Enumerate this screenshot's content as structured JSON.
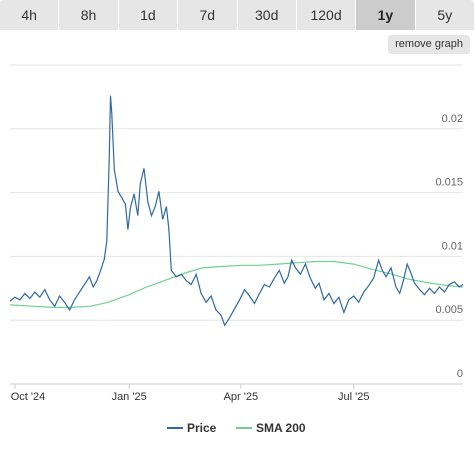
{
  "tabs": [
    {
      "label": "4h",
      "active": false
    },
    {
      "label": "8h",
      "active": false
    },
    {
      "label": "1d",
      "active": false
    },
    {
      "label": "7d",
      "active": false
    },
    {
      "label": "30d",
      "active": false
    },
    {
      "label": "120d",
      "active": false
    },
    {
      "label": "1y",
      "active": true
    },
    {
      "label": "5y",
      "active": false
    }
  ],
  "remove_graph_label": "remove graph",
  "colors": {
    "price": "#2f6aa0",
    "sma": "#6fd18f",
    "grid": "#e6e6e6"
  },
  "chart_data": {
    "type": "line",
    "ylim": [
      0,
      0.025
    ],
    "ytick_values": [
      0,
      0.005,
      0.01,
      0.015,
      0.02
    ],
    "ytick_labels": [
      "0",
      "0.005",
      "0.01",
      "0.015",
      "0.02"
    ],
    "xlim": [
      "2024-09-27",
      "2025-09-27"
    ],
    "xticks": [
      {
        "date": "2024-10-01",
        "label": "Oct '24"
      },
      {
        "date": "2025-01-01",
        "label": "Jan '25"
      },
      {
        "date": "2025-04-01",
        "label": "Apr '25"
      },
      {
        "date": "2025-07-01",
        "label": "Jul '25"
      }
    ],
    "series": [
      {
        "name": "Price",
        "points": [
          [
            "2024-09-27",
            0.0065
          ],
          [
            "2024-10-01",
            0.0068
          ],
          [
            "2024-10-05",
            0.0066
          ],
          [
            "2024-10-09",
            0.0071
          ],
          [
            "2024-10-13",
            0.0067
          ],
          [
            "2024-10-17",
            0.0072
          ],
          [
            "2024-10-21",
            0.0068
          ],
          [
            "2024-10-25",
            0.0074
          ],
          [
            "2024-10-29",
            0.0066
          ],
          [
            "2024-11-02",
            0.0061
          ],
          [
            "2024-11-06",
            0.0069
          ],
          [
            "2024-11-10",
            0.0064
          ],
          [
            "2024-11-14",
            0.0058
          ],
          [
            "2024-11-18",
            0.0066
          ],
          [
            "2024-11-22",
            0.0072
          ],
          [
            "2024-11-26",
            0.0078
          ],
          [
            "2024-11-30",
            0.0084
          ],
          [
            "2024-12-03",
            0.0076
          ],
          [
            "2024-12-06",
            0.0081
          ],
          [
            "2024-12-09",
            0.0089
          ],
          [
            "2024-12-12",
            0.0098
          ],
          [
            "2024-12-14",
            0.0112
          ],
          [
            "2024-12-16",
            0.0179
          ],
          [
            "2024-12-17",
            0.0226
          ],
          [
            "2024-12-18",
            0.0212
          ],
          [
            "2024-12-20",
            0.0168
          ],
          [
            "2024-12-23",
            0.0151
          ],
          [
            "2024-12-26",
            0.0146
          ],
          [
            "2024-12-29",
            0.0141
          ],
          [
            "2024-12-31",
            0.0121
          ],
          [
            "2025-01-02",
            0.0138
          ],
          [
            "2025-01-05",
            0.0149
          ],
          [
            "2025-01-08",
            0.0132
          ],
          [
            "2025-01-10",
            0.0157
          ],
          [
            "2025-01-13",
            0.0169
          ],
          [
            "2025-01-16",
            0.0143
          ],
          [
            "2025-01-19",
            0.0132
          ],
          [
            "2025-01-22",
            0.0139
          ],
          [
            "2025-01-25",
            0.0151
          ],
          [
            "2025-01-28",
            0.0129
          ],
          [
            "2025-01-31",
            0.0139
          ],
          [
            "2025-02-02",
            0.0121
          ],
          [
            "2025-02-04",
            0.0089
          ],
          [
            "2025-02-08",
            0.0084
          ],
          [
            "2025-02-12",
            0.0086
          ],
          [
            "2025-02-16",
            0.0081
          ],
          [
            "2025-02-20",
            0.0078
          ],
          [
            "2025-02-24",
            0.0086
          ],
          [
            "2025-02-28",
            0.0071
          ],
          [
            "2025-03-04",
            0.0064
          ],
          [
            "2025-03-08",
            0.0069
          ],
          [
            "2025-03-12",
            0.0058
          ],
          [
            "2025-03-16",
            0.0054
          ],
          [
            "2025-03-19",
            0.0046
          ],
          [
            "2025-03-23",
            0.0052
          ],
          [
            "2025-03-27",
            0.0059
          ],
          [
            "2025-03-31",
            0.0066
          ],
          [
            "2025-04-04",
            0.0074
          ],
          [
            "2025-04-08",
            0.0069
          ],
          [
            "2025-04-12",
            0.0063
          ],
          [
            "2025-04-16",
            0.0071
          ],
          [
            "2025-04-20",
            0.0078
          ],
          [
            "2025-04-24",
            0.0076
          ],
          [
            "2025-04-28",
            0.0083
          ],
          [
            "2025-05-02",
            0.0089
          ],
          [
            "2025-05-06",
            0.0079
          ],
          [
            "2025-05-09",
            0.0084
          ],
          [
            "2025-05-12",
            0.0097
          ],
          [
            "2025-05-15",
            0.0091
          ],
          [
            "2025-05-19",
            0.0086
          ],
          [
            "2025-05-23",
            0.0094
          ],
          [
            "2025-05-27",
            0.0083
          ],
          [
            "2025-05-31",
            0.0075
          ],
          [
            "2025-06-03",
            0.0079
          ],
          [
            "2025-06-07",
            0.0066
          ],
          [
            "2025-06-11",
            0.0071
          ],
          [
            "2025-06-15",
            0.0063
          ],
          [
            "2025-06-19",
            0.0068
          ],
          [
            "2025-06-23",
            0.0056
          ],
          [
            "2025-06-27",
            0.0066
          ],
          [
            "2025-07-01",
            0.0069
          ],
          [
            "2025-07-05",
            0.0064
          ],
          [
            "2025-07-09",
            0.0072
          ],
          [
            "2025-07-13",
            0.0077
          ],
          [
            "2025-07-17",
            0.0083
          ],
          [
            "2025-07-21",
            0.0097
          ],
          [
            "2025-07-24",
            0.0089
          ],
          [
            "2025-07-27",
            0.0084
          ],
          [
            "2025-07-31",
            0.0091
          ],
          [
            "2025-08-04",
            0.0076
          ],
          [
            "2025-08-07",
            0.0071
          ],
          [
            "2025-08-10",
            0.0081
          ],
          [
            "2025-08-13",
            0.0094
          ],
          [
            "2025-08-16",
            0.0087
          ],
          [
            "2025-08-19",
            0.0079
          ],
          [
            "2025-08-23",
            0.0074
          ],
          [
            "2025-08-27",
            0.007
          ],
          [
            "2025-08-31",
            0.0075
          ],
          [
            "2025-09-04",
            0.0071
          ],
          [
            "2025-09-08",
            0.0076
          ],
          [
            "2025-09-12",
            0.0072
          ],
          [
            "2025-09-16",
            0.0078
          ],
          [
            "2025-09-20",
            0.008
          ],
          [
            "2025-09-24",
            0.0076
          ],
          [
            "2025-09-27",
            0.0078
          ]
        ]
      },
      {
        "name": "SMA 200",
        "points": [
          [
            "2024-09-27",
            0.0062
          ],
          [
            "2024-10-15",
            0.0061
          ],
          [
            "2024-11-01",
            0.006
          ],
          [
            "2024-11-15",
            0.006
          ],
          [
            "2024-12-01",
            0.0061
          ],
          [
            "2024-12-15",
            0.0064
          ],
          [
            "2025-01-01",
            0.007
          ],
          [
            "2025-01-15",
            0.0076
          ],
          [
            "2025-02-01",
            0.0082
          ],
          [
            "2025-02-15",
            0.0087
          ],
          [
            "2025-03-01",
            0.0091
          ],
          [
            "2025-03-15",
            0.0092
          ],
          [
            "2025-04-01",
            0.0093
          ],
          [
            "2025-04-15",
            0.0093
          ],
          [
            "2025-05-01",
            0.0094
          ],
          [
            "2025-05-15",
            0.0095
          ],
          [
            "2025-06-01",
            0.0096
          ],
          [
            "2025-06-15",
            0.0096
          ],
          [
            "2025-07-01",
            0.0094
          ],
          [
            "2025-07-15",
            0.009
          ],
          [
            "2025-08-01",
            0.0086
          ],
          [
            "2025-08-15",
            0.0082
          ],
          [
            "2025-09-01",
            0.0079
          ],
          [
            "2025-09-15",
            0.0077
          ],
          [
            "2025-09-27",
            0.0076
          ]
        ]
      }
    ]
  }
}
